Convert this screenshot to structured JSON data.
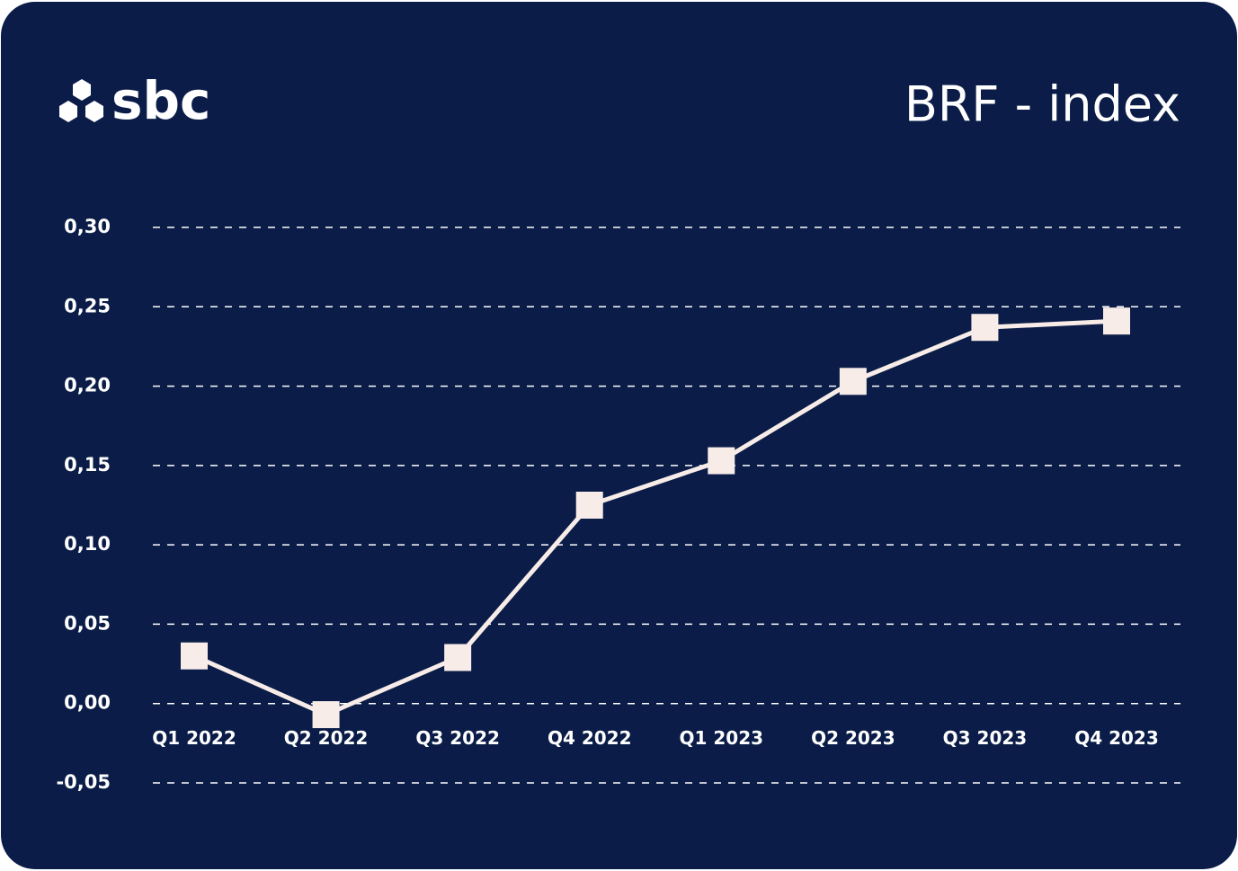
{
  "logo": "sbc",
  "chart_data": {
    "type": "line",
    "title": "BRF - index",
    "categories": [
      "Q1 2022",
      "Q2 2022",
      "Q3 2022",
      "Q4 2022",
      "Q1 2023",
      "Q2 2023",
      "Q3 2023",
      "Q4 2023"
    ],
    "series": [
      {
        "name": "BRF - index",
        "color": "#f7ece8",
        "values": [
          0.03,
          -0.007,
          0.029,
          0.125,
          0.153,
          0.203,
          0.237,
          0.241
        ]
      }
    ],
    "ylim": [
      -0.05,
      0.3
    ],
    "yticks": [
      {
        "value": -0.05,
        "label": "-0,05"
      },
      {
        "value": 0,
        "label": "0,00"
      },
      {
        "value": 0.05,
        "label": "0,05"
      },
      {
        "value": 0.1,
        "label": "0,10"
      },
      {
        "value": 0.15,
        "label": "0,15"
      },
      {
        "value": 0.2,
        "label": "0,20"
      },
      {
        "value": 0.25,
        "label": "0,25"
      },
      {
        "value": 0.3,
        "label": "0,30"
      }
    ],
    "grid": true
  }
}
